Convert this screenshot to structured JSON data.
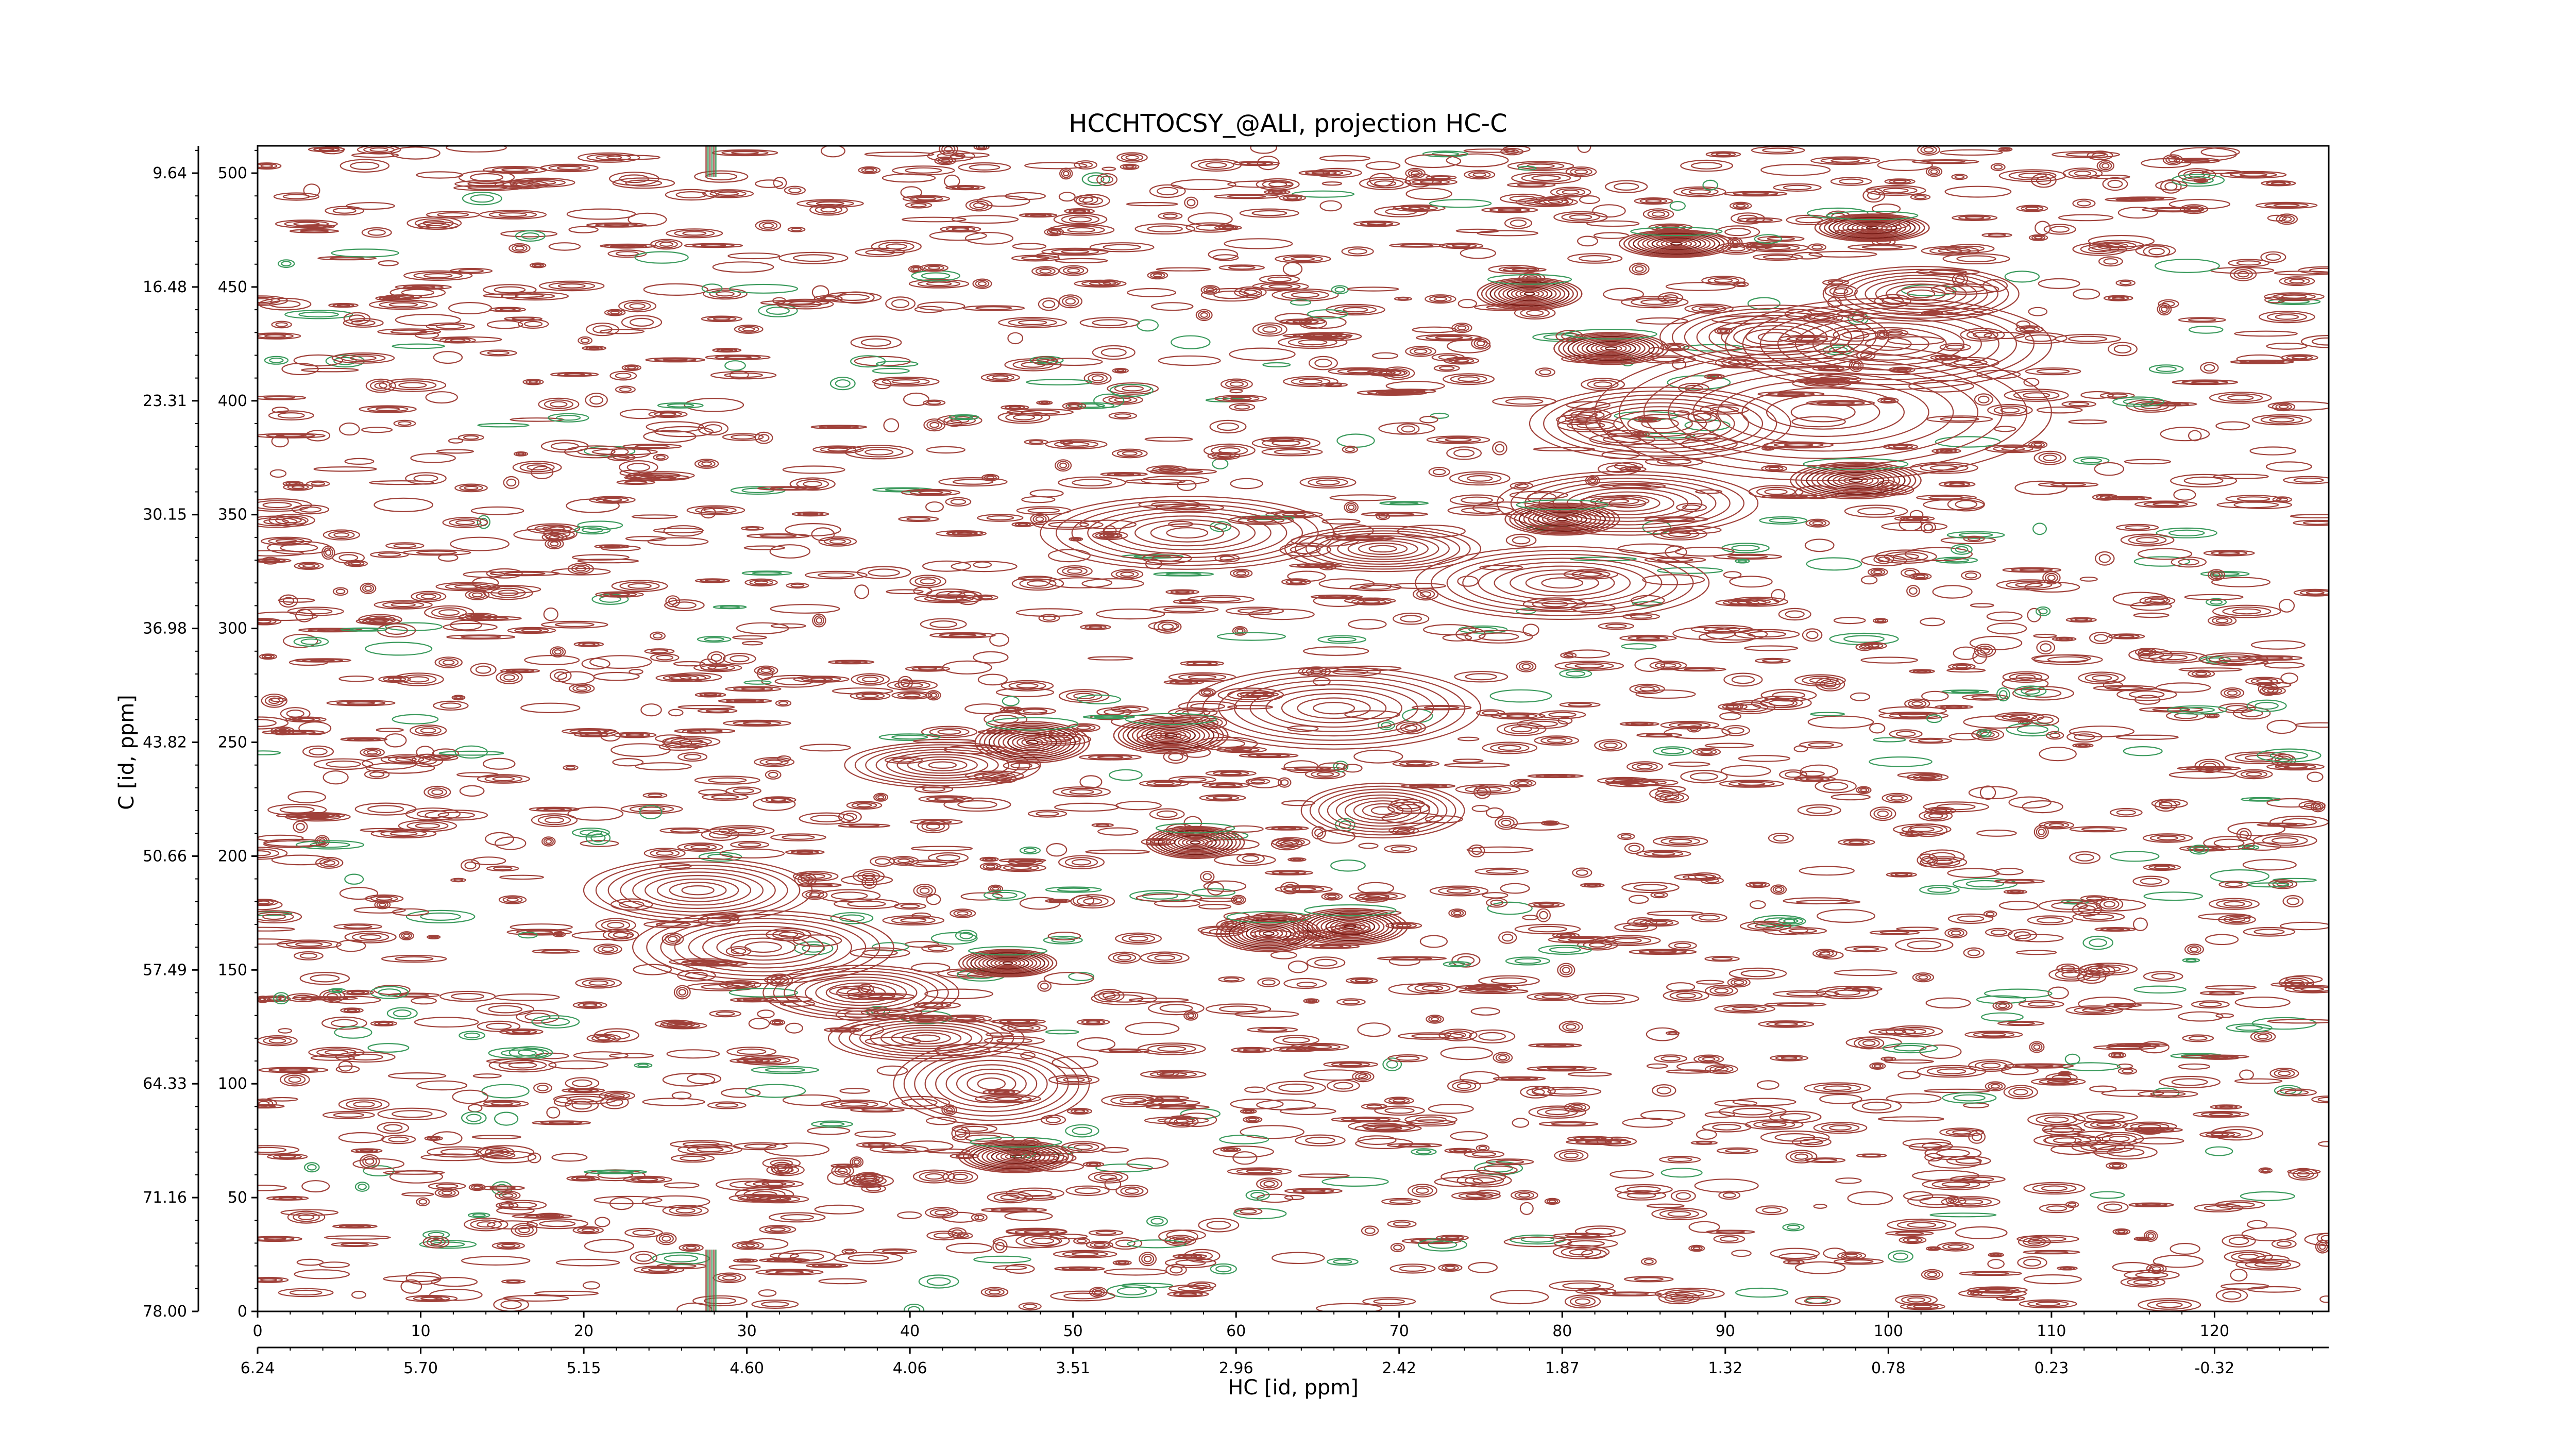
{
  "chart_data": {
    "type": "contour",
    "title": "HCCHTOCSY_@ALI, projection HC-C",
    "xlabel": "HC [id, ppm]",
    "ylabel": "C [id, ppm]",
    "xlim": [
      0,
      127
    ],
    "ylim": [
      0,
      512
    ],
    "x_ticks": [
      0,
      10,
      20,
      30,
      40,
      50,
      60,
      70,
      80,
      90,
      100,
      110,
      120
    ],
    "x_ppm_labels": [
      "6.24",
      "5.70",
      "5.15",
      "4.60",
      "4.06",
      "3.51",
      "2.96",
      "2.42",
      "1.87",
      "1.32",
      "0.78",
      "0.23",
      "-0.32"
    ],
    "y_ticks": [
      0,
      50,
      100,
      150,
      200,
      250,
      300,
      350,
      400,
      450,
      500
    ],
    "y_ppm_labels": [
      "78.00",
      "71.16",
      "64.33",
      "57.49",
      "50.66",
      "43.82",
      "36.98",
      "30.15",
      "23.31",
      "16.48",
      "9.64"
    ],
    "colors": {
      "positive": "#a0413a",
      "negative": "#3a9a5c"
    },
    "strong_peaks": [
      {
        "x": 47.5,
        "y": 250,
        "w": 3.5,
        "h": 9
      },
      {
        "x": 56,
        "y": 253,
        "w": 3.5,
        "h": 8
      },
      {
        "x": 57.5,
        "y": 206,
        "w": 3,
        "h": 7
      },
      {
        "x": 62,
        "y": 166,
        "w": 3.2,
        "h": 8
      },
      {
        "x": 67,
        "y": 169,
        "w": 3.5,
        "h": 8
      },
      {
        "x": 46,
        "y": 153,
        "w": 3,
        "h": 6
      },
      {
        "x": 46.5,
        "y": 68,
        "w": 3.5,
        "h": 7
      },
      {
        "x": 78,
        "y": 447,
        "w": 3.2,
        "h": 7
      },
      {
        "x": 83,
        "y": 423,
        "w": 3.5,
        "h": 7
      },
      {
        "x": 80,
        "y": 348,
        "w": 3.5,
        "h": 7
      },
      {
        "x": 87,
        "y": 469,
        "w": 3.5,
        "h": 6
      },
      {
        "x": 99,
        "y": 476,
        "w": 3.5,
        "h": 6
      },
      {
        "x": 98,
        "y": 365,
        "w": 4,
        "h": 8
      }
    ],
    "broad_peaks": [
      {
        "x": 57,
        "y": 342,
        "w": 9,
        "h": 16
      },
      {
        "x": 96,
        "y": 395,
        "w": 14,
        "h": 30
      },
      {
        "x": 100,
        "y": 425,
        "w": 10,
        "h": 20
      },
      {
        "x": 86,
        "y": 390,
        "w": 8,
        "h": 16
      },
      {
        "x": 84,
        "y": 355,
        "w": 8,
        "h": 14
      },
      {
        "x": 93,
        "y": 428,
        "w": 7,
        "h": 14
      },
      {
        "x": 102,
        "y": 447,
        "w": 6,
        "h": 12
      },
      {
        "x": 69,
        "y": 335,
        "w": 6,
        "h": 10
      },
      {
        "x": 80,
        "y": 320,
        "w": 9,
        "h": 16
      },
      {
        "x": 66,
        "y": 265,
        "w": 9,
        "h": 18
      },
      {
        "x": 42,
        "y": 240,
        "w": 6,
        "h": 10
      },
      {
        "x": 31,
        "y": 160,
        "w": 8,
        "h": 16
      },
      {
        "x": 27,
        "y": 185,
        "w": 7,
        "h": 14
      },
      {
        "x": 37,
        "y": 140,
        "w": 6,
        "h": 12
      },
      {
        "x": 45,
        "y": 100,
        "w": 6,
        "h": 18
      },
      {
        "x": 69,
        "y": 220,
        "w": 5,
        "h": 12
      },
      {
        "x": 41,
        "y": 120,
        "w": 6,
        "h": 10
      }
    ]
  }
}
